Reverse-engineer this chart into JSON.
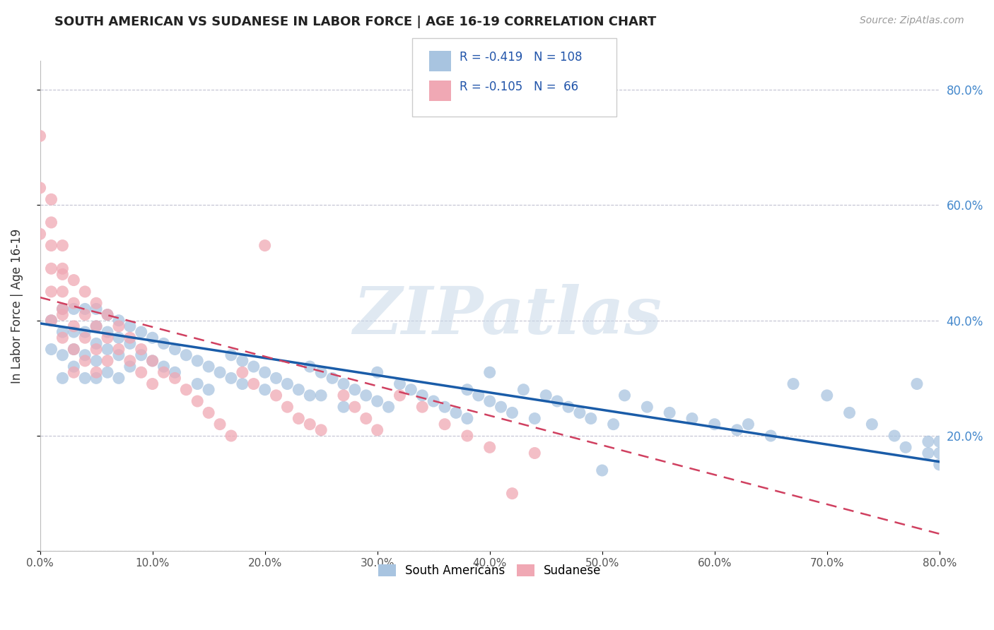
{
  "title": "SOUTH AMERICAN VS SUDANESE IN LABOR FORCE | AGE 16-19 CORRELATION CHART",
  "source": "Source: ZipAtlas.com",
  "ylabel": "In Labor Force | Age 16-19",
  "xlim": [
    0.0,
    0.8
  ],
  "ylim": [
    0.0,
    0.85
  ],
  "xticks": [
    0.0,
    0.1,
    0.2,
    0.3,
    0.4,
    0.5,
    0.6,
    0.7,
    0.8
  ],
  "xticklabels": [
    "0.0%",
    "10.0%",
    "20.0%",
    "30.0%",
    "40.0%",
    "50.0%",
    "60.0%",
    "70.0%",
    "80.0%"
  ],
  "right_yticks": [
    0.2,
    0.4,
    0.6,
    0.8
  ],
  "right_yticklabels": [
    "20.0%",
    "40.0%",
    "60.0%",
    "80.0%"
  ],
  "blue_R": -0.419,
  "blue_N": 108,
  "pink_R": -0.105,
  "pink_N": 66,
  "blue_color": "#a8c4e0",
  "pink_color": "#f0a8b4",
  "blue_line_color": "#1a5ca8",
  "pink_line_color": "#d04060",
  "watermark": "ZIPatlas",
  "legend_blue_label": "South Americans",
  "legend_pink_label": "Sudanese",
  "blue_scatter_x": [
    0.01,
    0.01,
    0.02,
    0.02,
    0.02,
    0.02,
    0.03,
    0.03,
    0.03,
    0.03,
    0.04,
    0.04,
    0.04,
    0.04,
    0.05,
    0.05,
    0.05,
    0.05,
    0.05,
    0.06,
    0.06,
    0.06,
    0.06,
    0.07,
    0.07,
    0.07,
    0.07,
    0.08,
    0.08,
    0.08,
    0.09,
    0.09,
    0.1,
    0.1,
    0.11,
    0.11,
    0.12,
    0.12,
    0.13,
    0.14,
    0.14,
    0.15,
    0.15,
    0.16,
    0.17,
    0.17,
    0.18,
    0.18,
    0.19,
    0.2,
    0.2,
    0.21,
    0.22,
    0.23,
    0.24,
    0.24,
    0.25,
    0.25,
    0.26,
    0.27,
    0.27,
    0.28,
    0.29,
    0.3,
    0.3,
    0.31,
    0.32,
    0.33,
    0.34,
    0.35,
    0.36,
    0.37,
    0.38,
    0.38,
    0.39,
    0.4,
    0.4,
    0.41,
    0.42,
    0.43,
    0.44,
    0.45,
    0.46,
    0.47,
    0.48,
    0.49,
    0.5,
    0.51,
    0.52,
    0.54,
    0.56,
    0.58,
    0.6,
    0.62,
    0.63,
    0.65,
    0.67,
    0.7,
    0.72,
    0.74,
    0.76,
    0.77,
    0.78,
    0.79,
    0.79,
    0.8,
    0.8,
    0.8
  ],
  "blue_scatter_y": [
    0.4,
    0.35,
    0.42,
    0.38,
    0.34,
    0.3,
    0.42,
    0.38,
    0.35,
    0.32,
    0.42,
    0.38,
    0.34,
    0.3,
    0.42,
    0.39,
    0.36,
    0.33,
    0.3,
    0.41,
    0.38,
    0.35,
    0.31,
    0.4,
    0.37,
    0.34,
    0.3,
    0.39,
    0.36,
    0.32,
    0.38,
    0.34,
    0.37,
    0.33,
    0.36,
    0.32,
    0.35,
    0.31,
    0.34,
    0.33,
    0.29,
    0.32,
    0.28,
    0.31,
    0.34,
    0.3,
    0.33,
    0.29,
    0.32,
    0.31,
    0.28,
    0.3,
    0.29,
    0.28,
    0.32,
    0.27,
    0.31,
    0.27,
    0.3,
    0.29,
    0.25,
    0.28,
    0.27,
    0.26,
    0.31,
    0.25,
    0.29,
    0.28,
    0.27,
    0.26,
    0.25,
    0.24,
    0.28,
    0.23,
    0.27,
    0.26,
    0.31,
    0.25,
    0.24,
    0.28,
    0.23,
    0.27,
    0.26,
    0.25,
    0.24,
    0.23,
    0.14,
    0.22,
    0.27,
    0.25,
    0.24,
    0.23,
    0.22,
    0.21,
    0.22,
    0.2,
    0.29,
    0.27,
    0.24,
    0.22,
    0.2,
    0.18,
    0.29,
    0.17,
    0.19,
    0.15,
    0.17,
    0.19
  ],
  "pink_scatter_x": [
    0.0,
    0.0,
    0.0,
    0.01,
    0.01,
    0.01,
    0.01,
    0.01,
    0.01,
    0.02,
    0.02,
    0.02,
    0.02,
    0.02,
    0.02,
    0.02,
    0.03,
    0.03,
    0.03,
    0.03,
    0.03,
    0.04,
    0.04,
    0.04,
    0.04,
    0.05,
    0.05,
    0.05,
    0.05,
    0.06,
    0.06,
    0.06,
    0.07,
    0.07,
    0.08,
    0.08,
    0.09,
    0.09,
    0.1,
    0.1,
    0.11,
    0.12,
    0.13,
    0.14,
    0.15,
    0.16,
    0.17,
    0.18,
    0.19,
    0.2,
    0.21,
    0.22,
    0.23,
    0.24,
    0.25,
    0.27,
    0.28,
    0.29,
    0.3,
    0.32,
    0.34,
    0.36,
    0.38,
    0.4,
    0.42,
    0.44
  ],
  "pink_scatter_y": [
    0.72,
    0.63,
    0.55,
    0.61,
    0.57,
    0.53,
    0.49,
    0.45,
    0.4,
    0.53,
    0.49,
    0.45,
    0.41,
    0.37,
    0.48,
    0.42,
    0.47,
    0.43,
    0.39,
    0.35,
    0.31,
    0.45,
    0.41,
    0.37,
    0.33,
    0.43,
    0.39,
    0.35,
    0.31,
    0.41,
    0.37,
    0.33,
    0.39,
    0.35,
    0.37,
    0.33,
    0.35,
    0.31,
    0.33,
    0.29,
    0.31,
    0.3,
    0.28,
    0.26,
    0.24,
    0.22,
    0.2,
    0.31,
    0.29,
    0.53,
    0.27,
    0.25,
    0.23,
    0.22,
    0.21,
    0.27,
    0.25,
    0.23,
    0.21,
    0.27,
    0.25,
    0.22,
    0.2,
    0.18,
    0.1,
    0.17
  ],
  "blue_line_x0": 0.0,
  "blue_line_x1": 0.8,
  "blue_line_y0": 0.395,
  "blue_line_y1": 0.155,
  "pink_line_x0": 0.0,
  "pink_line_x1": 0.8,
  "pink_line_y0": 0.44,
  "pink_line_y1": 0.03
}
